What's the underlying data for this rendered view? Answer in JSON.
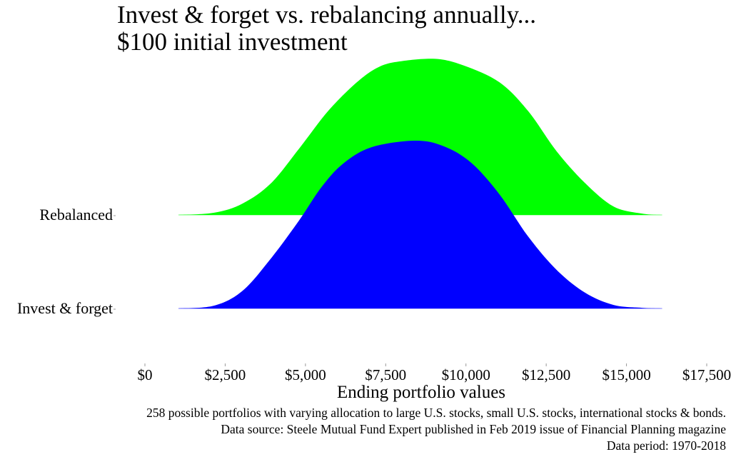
{
  "chart_data": {
    "type": "area",
    "subtype": "ridgeline-density",
    "title_lines": [
      "Invest & forget vs. rebalancing annually...",
      "$100 initial investment"
    ],
    "xlabel": "Ending portfolio values",
    "ylabel": "",
    "xlim": [
      0,
      17500
    ],
    "x_ticks": [
      0,
      2500,
      5000,
      7500,
      10000,
      12500,
      15000,
      17500
    ],
    "x_tick_labels": [
      "$0",
      "$2,500",
      "$5,000",
      "$7,500",
      "$10,000",
      "$12,500",
      "$15,000",
      "$17,500"
    ],
    "grid": false,
    "categories": [
      "Rebalanced",
      "Invest & forget"
    ],
    "series": [
      {
        "name": "Rebalanced",
        "color": "#00ff00",
        "x": [
          1044,
          2156,
          3044,
          3933,
          4822,
          5711,
          6600,
          7267,
          7933,
          9044,
          9933,
          11044,
          11933,
          12822,
          13711,
          14600,
          15489,
          16111
        ],
        "density": [
          0.0,
          0.013,
          0.068,
          0.19,
          0.4,
          0.62,
          0.79,
          0.88,
          0.915,
          0.93,
          0.89,
          0.79,
          0.62,
          0.38,
          0.19,
          0.05,
          0.008,
          0.0
        ]
      },
      {
        "name": "Invest & forget",
        "color": "#0000ff",
        "x": [
          1044,
          2156,
          3044,
          3933,
          4822,
          5489,
          6156,
          7044,
          8378,
          9267,
          10156,
          11044,
          11933,
          12822,
          13711,
          14600,
          15489,
          16111
        ],
        "density": [
          0.0,
          0.017,
          0.106,
          0.3,
          0.53,
          0.72,
          0.86,
          0.96,
          1.0,
          0.97,
          0.87,
          0.68,
          0.43,
          0.23,
          0.094,
          0.021,
          0.004,
          0.0
        ]
      }
    ],
    "captions": [
      "258 possible portfolios with varying allocation to large U.S. stocks, small U.S. stocks, international stocks & bonds.",
      "Data source: Steele Mutual Fund Expert published in Feb 2019 issue of Financial Planning magazine",
      "Data period: 1970-2018"
    ]
  }
}
